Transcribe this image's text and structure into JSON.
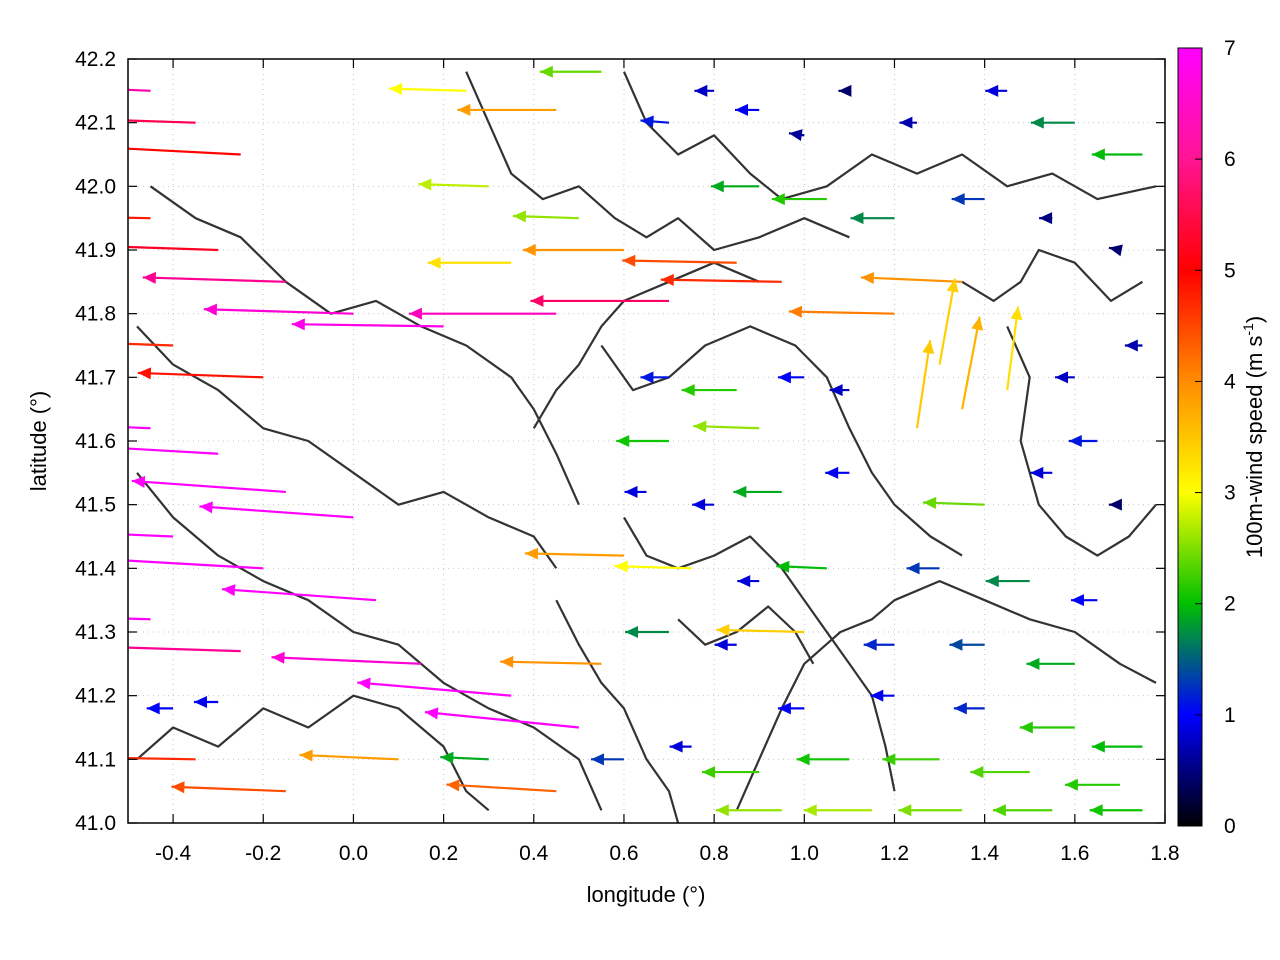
{
  "chart_data": {
    "type": "vector-field",
    "description_visible": "Wind vectors colored by speed over terrain contours",
    "xlabel": "longitude (°)",
    "ylabel": "latitude (°)",
    "colorbar_label_main": "100m-wind speed (m s",
    "colorbar_label_sup": "-1",
    "colorbar_label_end": ")",
    "xlim": [
      -0.5,
      1.8
    ],
    "ylim": [
      41.0,
      42.2
    ],
    "x_ticks": [
      "-0.4",
      "-0.2",
      "0.0",
      "0.2",
      "0.4",
      "0.6",
      "0.8",
      "1.0",
      "1.2",
      "1.4",
      "1.6",
      "1.8"
    ],
    "x_tick_values": [
      -0.4,
      -0.2,
      0.0,
      0.2,
      0.4,
      0.6,
      0.8,
      1.0,
      1.2,
      1.4,
      1.6,
      1.8
    ],
    "y_ticks": [
      "41.0",
      "41.1",
      "41.2",
      "41.3",
      "41.4",
      "41.5",
      "41.6",
      "41.7",
      "41.8",
      "41.9",
      "42.0",
      "42.1",
      "42.2"
    ],
    "y_tick_values": [
      41.0,
      41.1,
      41.2,
      41.3,
      41.4,
      41.5,
      41.6,
      41.7,
      41.8,
      41.9,
      42.0,
      42.1,
      42.2
    ],
    "colorbar_range": [
      0,
      7
    ],
    "colorbar_ticks": [
      "0",
      "1",
      "2",
      "3",
      "4",
      "5",
      "6",
      "7"
    ],
    "colorbar_tick_values": [
      0,
      1,
      2,
      3,
      4,
      5,
      6,
      7
    ],
    "colormap": [
      "#000000",
      "#0000ff",
      "#00c000",
      "#ffff00",
      "#ff8c00",
      "#ff0000",
      "#ff00ff"
    ],
    "grid": true,
    "vectors": [
      {
        "lon": -0.45,
        "lat": 42.15,
        "u": -6.6,
        "v": 0.3
      },
      {
        "lon": -0.35,
        "lat": 42.1,
        "u": -6.2,
        "v": 0.2
      },
      {
        "lon": -0.25,
        "lat": 42.05,
        "u": -5.8,
        "v": 0.3
      },
      {
        "lon": -0.45,
        "lat": 41.95,
        "u": -5.6,
        "v": 0.1
      },
      {
        "lon": -0.3,
        "lat": 41.9,
        "u": -6.0,
        "v": 0.2
      },
      {
        "lon": -0.15,
        "lat": 41.85,
        "u": -6.5,
        "v": 0.2
      },
      {
        "lon": 0.0,
        "lat": 41.8,
        "u": -6.8,
        "v": 0.2
      },
      {
        "lon": 0.2,
        "lat": 41.78,
        "u": -6.9,
        "v": 0.1
      },
      {
        "lon": 0.45,
        "lat": 41.8,
        "u": -6.7,
        "v": 0.0
      },
      {
        "lon": 0.7,
        "lat": 41.82,
        "u": -6.3,
        "v": 0.0
      },
      {
        "lon": -0.4,
        "lat": 41.75,
        "u": -5.5,
        "v": 0.2
      },
      {
        "lon": -0.2,
        "lat": 41.7,
        "u": -5.7,
        "v": 0.2
      },
      {
        "lon": -0.45,
        "lat": 41.62,
        "u": -7.0,
        "v": 0.3
      },
      {
        "lon": -0.3,
        "lat": 41.58,
        "u": -7.0,
        "v": 0.4
      },
      {
        "lon": -0.15,
        "lat": 41.52,
        "u": -7.0,
        "v": 0.5
      },
      {
        "lon": 0.0,
        "lat": 41.48,
        "u": -7.0,
        "v": 0.5
      },
      {
        "lon": -0.4,
        "lat": 41.45,
        "u": -7.0,
        "v": 0.3
      },
      {
        "lon": -0.2,
        "lat": 41.4,
        "u": -7.0,
        "v": 0.4
      },
      {
        "lon": 0.05,
        "lat": 41.35,
        "u": -7.0,
        "v": 0.5
      },
      {
        "lon": -0.45,
        "lat": 41.32,
        "u": -7.0,
        "v": 0.2
      },
      {
        "lon": -0.25,
        "lat": 41.27,
        "u": -6.5,
        "v": 0.2
      },
      {
        "lon": 0.15,
        "lat": 41.25,
        "u": -6.8,
        "v": 0.3
      },
      {
        "lon": 0.35,
        "lat": 41.2,
        "u": -7.0,
        "v": 0.6
      },
      {
        "lon": 0.5,
        "lat": 41.15,
        "u": -7.0,
        "v": 0.7
      },
      {
        "lon": -0.4,
        "lat": 41.18,
        "u": -1.2,
        "v": 0.0
      },
      {
        "lon": -0.3,
        "lat": 41.19,
        "u": -1.1,
        "v": 0.0
      },
      {
        "lon": -0.35,
        "lat": 41.1,
        "u": -5.5,
        "v": 0.1
      },
      {
        "lon": -0.15,
        "lat": 41.05,
        "u": -5.2,
        "v": 0.2
      },
      {
        "lon": 0.1,
        "lat": 41.1,
        "u": -4.5,
        "v": 0.2
      },
      {
        "lon": 0.25,
        "lat": 42.15,
        "u": -3.5,
        "v": 0.1
      },
      {
        "lon": 0.45,
        "lat": 42.12,
        "u": -4.5,
        "v": 0.0
      },
      {
        "lon": 0.55,
        "lat": 42.18,
        "u": -2.8,
        "v": 0.0
      },
      {
        "lon": 0.3,
        "lat": 42.0,
        "u": -3.2,
        "v": 0.1
      },
      {
        "lon": 0.5,
        "lat": 41.95,
        "u": -3.0,
        "v": 0.1
      },
      {
        "lon": 0.35,
        "lat": 41.88,
        "u": -3.8,
        "v": 0.0
      },
      {
        "lon": 0.6,
        "lat": 41.9,
        "u": -4.6,
        "v": 0.0
      },
      {
        "lon": 0.85,
        "lat": 41.88,
        "u": -5.2,
        "v": 0.1
      },
      {
        "lon": 0.95,
        "lat": 41.85,
        "u": -5.5,
        "v": 0.1
      },
      {
        "lon": 1.2,
        "lat": 41.8,
        "u": -4.8,
        "v": 0.1
      },
      {
        "lon": 1.35,
        "lat": 41.85,
        "u": -4.6,
        "v": 0.2
      },
      {
        "lon": 0.7,
        "lat": 42.1,
        "u": -1.3,
        "v": 0.1
      },
      {
        "lon": 0.8,
        "lat": 42.15,
        "u": -0.9,
        "v": 0.0
      },
      {
        "lon": 0.9,
        "lat": 42.12,
        "u": -1.1,
        "v": 0.0
      },
      {
        "lon": 1.0,
        "lat": 42.08,
        "u": -0.7,
        "v": 0.1
      },
      {
        "lon": 1.1,
        "lat": 42.15,
        "u": -0.5,
        "v": 0.0
      },
      {
        "lon": 1.25,
        "lat": 42.1,
        "u": -0.8,
        "v": 0.0
      },
      {
        "lon": 1.45,
        "lat": 42.15,
        "u": -1.0,
        "v": 0.0
      },
      {
        "lon": 1.6,
        "lat": 42.1,
        "u": -2.0,
        "v": 0.0
      },
      {
        "lon": 1.75,
        "lat": 42.05,
        "u": -2.3,
        "v": 0.0
      },
      {
        "lon": 0.9,
        "lat": 42.0,
        "u": -2.2,
        "v": 0.0
      },
      {
        "lon": 1.05,
        "lat": 41.98,
        "u": -2.5,
        "v": 0.0
      },
      {
        "lon": 1.2,
        "lat": 41.95,
        "u": -2.0,
        "v": 0.0
      },
      {
        "lon": 1.4,
        "lat": 41.98,
        "u": -1.5,
        "v": 0.0
      },
      {
        "lon": 1.55,
        "lat": 41.95,
        "u": -0.6,
        "v": 0.0
      },
      {
        "lon": 1.7,
        "lat": 41.9,
        "u": -0.5,
        "v": 0.1
      },
      {
        "lon": 1.75,
        "lat": 41.75,
        "u": -0.8,
        "v": 0.0
      },
      {
        "lon": 1.6,
        "lat": 41.7,
        "u": -0.9,
        "v": 0.0
      },
      {
        "lon": 1.65,
        "lat": 41.6,
        "u": -1.3,
        "v": 0.0
      },
      {
        "lon": 1.7,
        "lat": 41.5,
        "u": -0.5,
        "v": 0.0
      },
      {
        "lon": 0.7,
        "lat": 41.7,
        "u": -1.3,
        "v": 0.0
      },
      {
        "lon": 0.85,
        "lat": 41.68,
        "u": -2.5,
        "v": 0.0
      },
      {
        "lon": 1.0,
        "lat": 41.7,
        "u": -1.2,
        "v": 0.0
      },
      {
        "lon": 1.1,
        "lat": 41.68,
        "u": -0.9,
        "v": 0.0
      },
      {
        "lon": 0.7,
        "lat": 41.6,
        "u": -2.4,
        "v": 0.0
      },
      {
        "lon": 0.9,
        "lat": 41.62,
        "u": -3.0,
        "v": 0.1
      },
      {
        "lon": 1.25,
        "lat": 41.62,
        "u": 0.6,
        "v": 4.0
      },
      {
        "lon": 1.35,
        "lat": 41.65,
        "u": 0.8,
        "v": 4.2
      },
      {
        "lon": 1.45,
        "lat": 41.68,
        "u": 0.5,
        "v": 3.8
      },
      {
        "lon": 1.3,
        "lat": 41.72,
        "u": 0.7,
        "v": 3.9
      },
      {
        "lon": 0.65,
        "lat": 41.52,
        "u": -1.0,
        "v": 0.0
      },
      {
        "lon": 0.8,
        "lat": 41.5,
        "u": -1.0,
        "v": 0.0
      },
      {
        "lon": 0.95,
        "lat": 41.52,
        "u": -2.2,
        "v": 0.0
      },
      {
        "lon": 1.1,
        "lat": 41.55,
        "u": -1.1,
        "v": 0.0
      },
      {
        "lon": 1.4,
        "lat": 41.5,
        "u": -2.8,
        "v": 0.1
      },
      {
        "lon": 1.55,
        "lat": 41.55,
        "u": -1.0,
        "v": 0.0
      },
      {
        "lon": 0.6,
        "lat": 41.42,
        "u": -4.5,
        "v": 0.1
      },
      {
        "lon": 0.75,
        "lat": 41.4,
        "u": -3.5,
        "v": 0.1
      },
      {
        "lon": 0.9,
        "lat": 41.38,
        "u": -1.0,
        "v": 0.0
      },
      {
        "lon": 1.05,
        "lat": 41.4,
        "u": -2.3,
        "v": 0.1
      },
      {
        "lon": 1.3,
        "lat": 41.4,
        "u": -1.5,
        "v": 0.0
      },
      {
        "lon": 1.5,
        "lat": 41.38,
        "u": -2.0,
        "v": 0.0
      },
      {
        "lon": 1.65,
        "lat": 41.35,
        "u": -1.2,
        "v": 0.0
      },
      {
        "lon": 0.7,
        "lat": 41.3,
        "u": -2.0,
        "v": 0.0
      },
      {
        "lon": 0.85,
        "lat": 41.28,
        "u": -1.0,
        "v": 0.0
      },
      {
        "lon": 1.0,
        "lat": 41.3,
        "u": -4.0,
        "v": 0.1
      },
      {
        "lon": 1.2,
        "lat": 41.28,
        "u": -1.4,
        "v": 0.0
      },
      {
        "lon": 1.4,
        "lat": 41.28,
        "u": -1.6,
        "v": 0.0
      },
      {
        "lon": 1.6,
        "lat": 41.25,
        "u": -2.2,
        "v": 0.0
      },
      {
        "lon": 1.0,
        "lat": 41.18,
        "u": -1.2,
        "v": 0.0
      },
      {
        "lon": 1.2,
        "lat": 41.2,
        "u": -1.1,
        "v": 0.0
      },
      {
        "lon": 1.4,
        "lat": 41.18,
        "u": -1.4,
        "v": 0.0
      },
      {
        "lon": 1.6,
        "lat": 41.15,
        "u": -2.5,
        "v": 0.0
      },
      {
        "lon": 1.75,
        "lat": 41.12,
        "u": -2.3,
        "v": 0.0
      },
      {
        "lon": 0.9,
        "lat": 41.08,
        "u": -2.6,
        "v": 0.0
      },
      {
        "lon": 1.1,
        "lat": 41.1,
        "u": -2.4,
        "v": 0.0
      },
      {
        "lon": 1.3,
        "lat": 41.1,
        "u": -2.6,
        "v": 0.0
      },
      {
        "lon": 1.5,
        "lat": 41.08,
        "u": -2.7,
        "v": 0.0
      },
      {
        "lon": 1.7,
        "lat": 41.06,
        "u": -2.5,
        "v": 0.0
      },
      {
        "lon": 0.95,
        "lat": 41.02,
        "u": -3.0,
        "v": 0.0
      },
      {
        "lon": 1.15,
        "lat": 41.02,
        "u": -3.1,
        "v": 0.0
      },
      {
        "lon": 1.35,
        "lat": 41.02,
        "u": -2.9,
        "v": 0.0
      },
      {
        "lon": 1.55,
        "lat": 41.02,
        "u": -2.7,
        "v": 0.0
      },
      {
        "lon": 1.75,
        "lat": 41.02,
        "u": -2.4,
        "v": 0.0
      },
      {
        "lon": 0.55,
        "lat": 41.25,
        "u": -4.6,
        "v": 0.1
      },
      {
        "lon": 0.6,
        "lat": 41.1,
        "u": -1.5,
        "v": 0.0
      },
      {
        "lon": 0.75,
        "lat": 41.12,
        "u": -1.0,
        "v": 0.0
      },
      {
        "lon": 0.45,
        "lat": 41.05,
        "u": -5.0,
        "v": 0.3
      },
      {
        "lon": 0.3,
        "lat": 41.1,
        "u": -2.2,
        "v": 0.1
      }
    ],
    "contours": [
      [
        [
          -0.48,
          41.78
        ],
        [
          -0.4,
          41.72
        ],
        [
          -0.3,
          41.68
        ],
        [
          -0.2,
          41.62
        ],
        [
          -0.1,
          41.6
        ],
        [
          0.0,
          41.55
        ],
        [
          0.1,
          41.5
        ],
        [
          0.2,
          41.52
        ],
        [
          0.3,
          41.48
        ],
        [
          0.4,
          41.45
        ],
        [
          0.45,
          41.4
        ]
      ],
      [
        [
          -0.48,
          41.55
        ],
        [
          -0.4,
          41.48
        ],
        [
          -0.3,
          41.42
        ],
        [
          -0.2,
          41.38
        ],
        [
          -0.1,
          41.35
        ],
        [
          0.0,
          41.3
        ],
        [
          0.1,
          41.28
        ],
        [
          0.2,
          41.22
        ],
        [
          0.3,
          41.18
        ],
        [
          0.4,
          41.15
        ],
        [
          0.5,
          41.1
        ],
        [
          0.55,
          41.02
        ]
      ],
      [
        [
          -0.45,
          42.0
        ],
        [
          -0.35,
          41.95
        ],
        [
          -0.25,
          41.92
        ],
        [
          -0.15,
          41.85
        ],
        [
          -0.05,
          41.8
        ],
        [
          0.05,
          41.82
        ],
        [
          0.15,
          41.78
        ],
        [
          0.25,
          41.75
        ],
        [
          0.35,
          41.7
        ],
        [
          0.4,
          41.65
        ],
        [
          0.45,
          41.58
        ],
        [
          0.5,
          41.5
        ]
      ],
      [
        [
          0.25,
          42.18
        ],
        [
          0.3,
          42.1
        ],
        [
          0.35,
          42.02
        ],
        [
          0.42,
          41.98
        ],
        [
          0.5,
          42.0
        ],
        [
          0.58,
          41.95
        ],
        [
          0.65,
          41.92
        ],
        [
          0.72,
          41.95
        ],
        [
          0.8,
          41.9
        ],
        [
          0.9,
          41.92
        ],
        [
          1.0,
          41.95
        ],
        [
          1.1,
          41.92
        ]
      ],
      [
        [
          0.6,
          42.18
        ],
        [
          0.65,
          42.1
        ],
        [
          0.72,
          42.05
        ],
        [
          0.8,
          42.08
        ],
        [
          0.88,
          42.02
        ],
        [
          0.95,
          41.98
        ],
        [
          1.05,
          42.0
        ],
        [
          1.15,
          42.05
        ],
        [
          1.25,
          42.02
        ],
        [
          1.35,
          42.05
        ],
        [
          1.45,
          42.0
        ],
        [
          1.55,
          42.02
        ],
        [
          1.65,
          41.98
        ],
        [
          1.78,
          42.0
        ]
      ],
      [
        [
          0.55,
          41.75
        ],
        [
          0.62,
          41.68
        ],
        [
          0.7,
          41.7
        ],
        [
          0.78,
          41.75
        ],
        [
          0.88,
          41.78
        ],
        [
          0.98,
          41.75
        ],
        [
          1.05,
          41.7
        ],
        [
          1.1,
          41.62
        ],
        [
          1.15,
          41.55
        ],
        [
          1.2,
          41.5
        ],
        [
          1.28,
          41.45
        ],
        [
          1.35,
          41.42
        ]
      ],
      [
        [
          0.6,
          41.48
        ],
        [
          0.65,
          41.42
        ],
        [
          0.72,
          41.4
        ],
        [
          0.8,
          41.42
        ],
        [
          0.88,
          41.45
        ],
        [
          0.95,
          41.4
        ],
        [
          1.0,
          41.35
        ],
        [
          1.05,
          41.3
        ],
        [
          1.1,
          41.25
        ],
        [
          1.15,
          41.2
        ],
        [
          1.18,
          41.12
        ],
        [
          1.2,
          41.05
        ]
      ],
      [
        [
          0.72,
          41.32
        ],
        [
          0.78,
          41.28
        ],
        [
          0.85,
          41.3
        ],
        [
          0.92,
          41.34
        ],
        [
          0.98,
          41.3
        ],
        [
          1.02,
          41.25
        ]
      ],
      [
        [
          0.85,
          41.02
        ],
        [
          0.9,
          41.1
        ],
        [
          0.95,
          41.18
        ],
        [
          1.0,
          41.25
        ],
        [
          1.08,
          41.3
        ],
        [
          1.15,
          41.32
        ],
        [
          1.2,
          41.35
        ],
        [
          1.3,
          41.38
        ],
        [
          1.4,
          41.35
        ],
        [
          1.5,
          41.32
        ],
        [
          1.6,
          41.3
        ],
        [
          1.7,
          41.25
        ],
        [
          1.78,
          41.22
        ]
      ],
      [
        [
          1.45,
          41.78
        ],
        [
          1.5,
          41.7
        ],
        [
          1.48,
          41.6
        ],
        [
          1.52,
          41.5
        ],
        [
          1.58,
          41.45
        ],
        [
          1.65,
          41.42
        ],
        [
          1.72,
          41.45
        ],
        [
          1.78,
          41.5
        ]
      ],
      [
        [
          1.35,
          41.85
        ],
        [
          1.42,
          41.82
        ],
        [
          1.48,
          41.85
        ],
        [
          1.52,
          41.9
        ],
        [
          1.6,
          41.88
        ],
        [
          1.68,
          41.82
        ],
        [
          1.75,
          41.85
        ]
      ],
      [
        [
          -0.48,
          41.1
        ],
        [
          -0.4,
          41.15
        ],
        [
          -0.3,
          41.12
        ],
        [
          -0.2,
          41.18
        ],
        [
          -0.1,
          41.15
        ],
        [
          0.0,
          41.2
        ],
        [
          0.1,
          41.18
        ],
        [
          0.2,
          41.12
        ],
        [
          0.25,
          41.05
        ],
        [
          0.3,
          41.02
        ]
      ],
      [
        [
          0.45,
          41.35
        ],
        [
          0.5,
          41.28
        ],
        [
          0.55,
          41.22
        ],
        [
          0.6,
          41.18
        ],
        [
          0.65,
          41.1
        ],
        [
          0.7,
          41.05
        ],
        [
          0.72,
          41.0
        ]
      ],
      [
        [
          0.4,
          41.62
        ],
        [
          0.45,
          41.68
        ],
        [
          0.5,
          41.72
        ],
        [
          0.55,
          41.78
        ],
        [
          0.6,
          41.82
        ],
        [
          0.7,
          41.85
        ],
        [
          0.8,
          41.88
        ],
        [
          0.9,
          41.85
        ]
      ]
    ]
  }
}
